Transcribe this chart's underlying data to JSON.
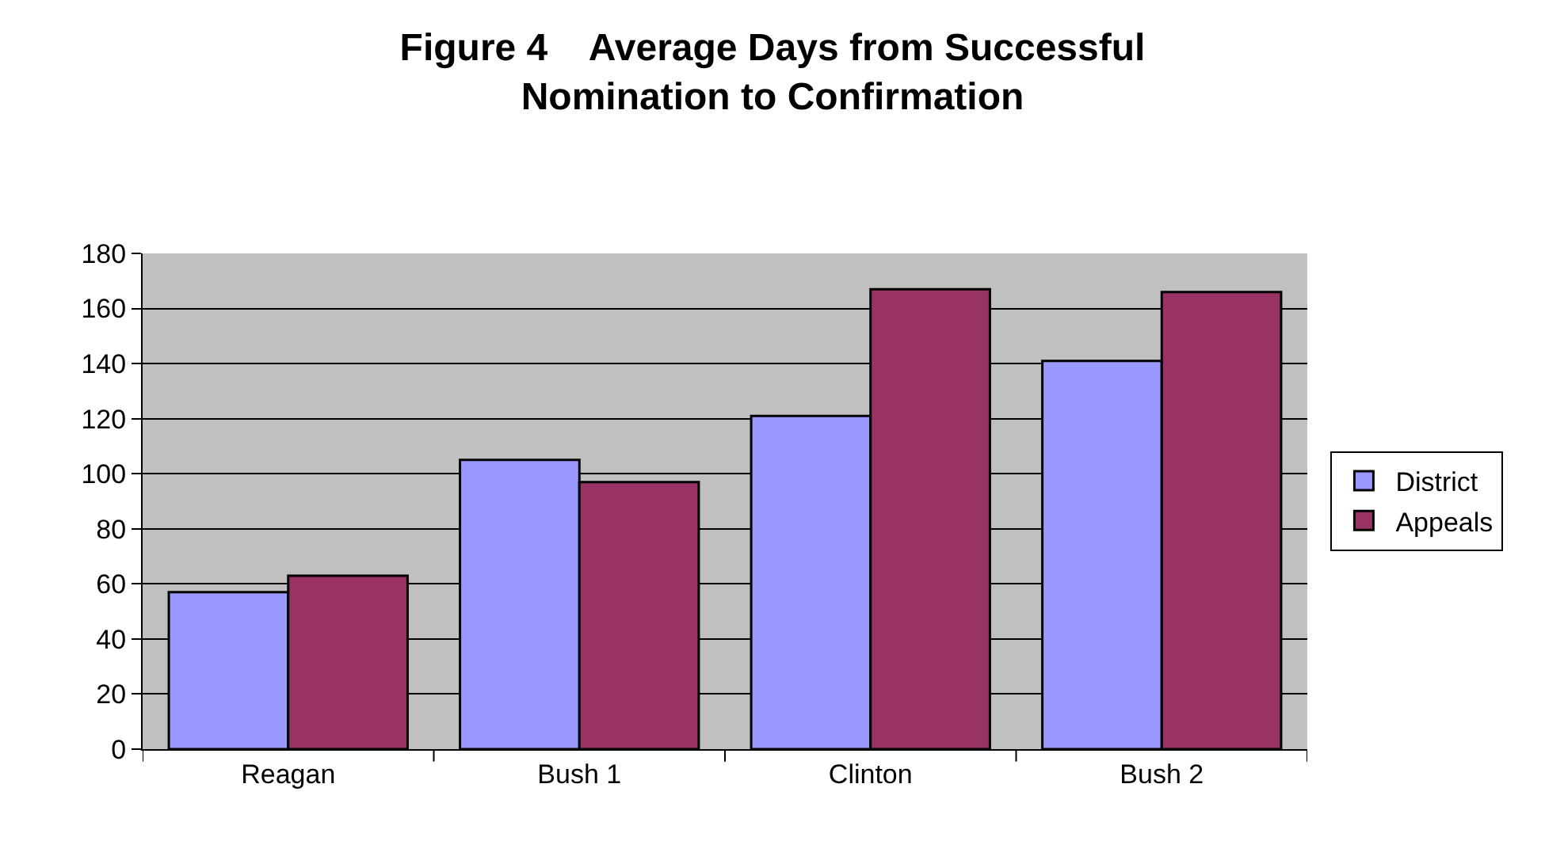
{
  "chart_data": {
    "type": "bar",
    "title": "Figure 4    Average Days from Successful Nomination to Confirmation",
    "categories": [
      "Reagan",
      "Bush 1",
      "Clinton",
      "Bush 2"
    ],
    "series": [
      {
        "name": "District",
        "color": "#9999ff",
        "values": [
          57,
          105,
          121,
          141
        ]
      },
      {
        "name": "Appeals",
        "color": "#993366",
        "values": [
          63,
          97,
          167,
          166
        ]
      }
    ],
    "ylim": [
      0,
      180
    ],
    "yticks": [
      0,
      20,
      40,
      60,
      80,
      100,
      120,
      140,
      160,
      180
    ],
    "grid": "y",
    "legend": "right"
  }
}
